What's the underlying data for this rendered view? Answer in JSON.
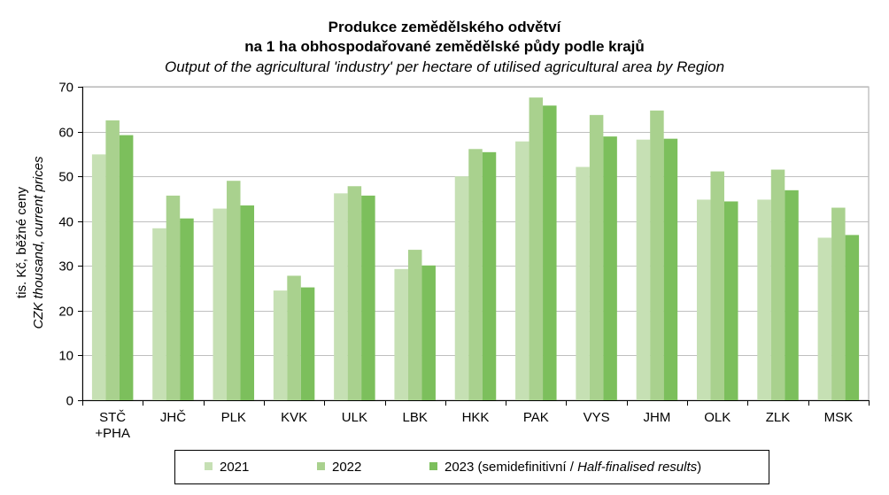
{
  "chart_data": {
    "type": "bar",
    "title": "Produkce zemědělského odvětví",
    "title_line2": "na 1 ha obhospodařované zemědělské půdy podle krajů",
    "subtitle": "Output of the agricultural 'industry' per hectare of utilised agricultural area by Region",
    "ylabel": "tis. Kč, běžné ceny",
    "ylabel_en": "CZK thousand, current prices",
    "ylim": [
      0,
      70
    ],
    "yticks": [
      0,
      10,
      20,
      30,
      40,
      50,
      60,
      70
    ],
    "grid": true,
    "legend_position": "bottom",
    "categories": [
      [
        "STČ",
        "+PHA"
      ],
      [
        "JHČ"
      ],
      [
        "PLK"
      ],
      [
        "KVK"
      ],
      [
        "ULK"
      ],
      [
        "LBK"
      ],
      [
        "HKK"
      ],
      [
        "PAK"
      ],
      [
        "VYS"
      ],
      [
        "JHM"
      ],
      [
        "OLK"
      ],
      [
        "ZLK"
      ],
      [
        "MSK"
      ]
    ],
    "series": [
      {
        "name": "2021",
        "color": "#c6e0b4",
        "values": [
          54.9,
          38.4,
          42.8,
          24.5,
          46.2,
          29.3,
          50.0,
          57.8,
          52.1,
          58.2,
          44.8,
          44.8,
          36.3
        ]
      },
      {
        "name": "2022",
        "color": "#a9d18e",
        "values": [
          62.5,
          45.7,
          49.0,
          27.8,
          47.8,
          33.6,
          56.1,
          67.6,
          63.7,
          64.7,
          51.1,
          51.5,
          43.0
        ]
      },
      {
        "name": "2023",
        "name_cs": "(semidefinitivní / ",
        "name_en": "Half-finalised results",
        "name_end": ")",
        "color": "#7cbf5c",
        "values": [
          59.2,
          40.6,
          43.5,
          25.2,
          45.7,
          30.1,
          55.4,
          65.8,
          58.9,
          58.4,
          44.4,
          46.9,
          36.9
        ]
      }
    ]
  }
}
